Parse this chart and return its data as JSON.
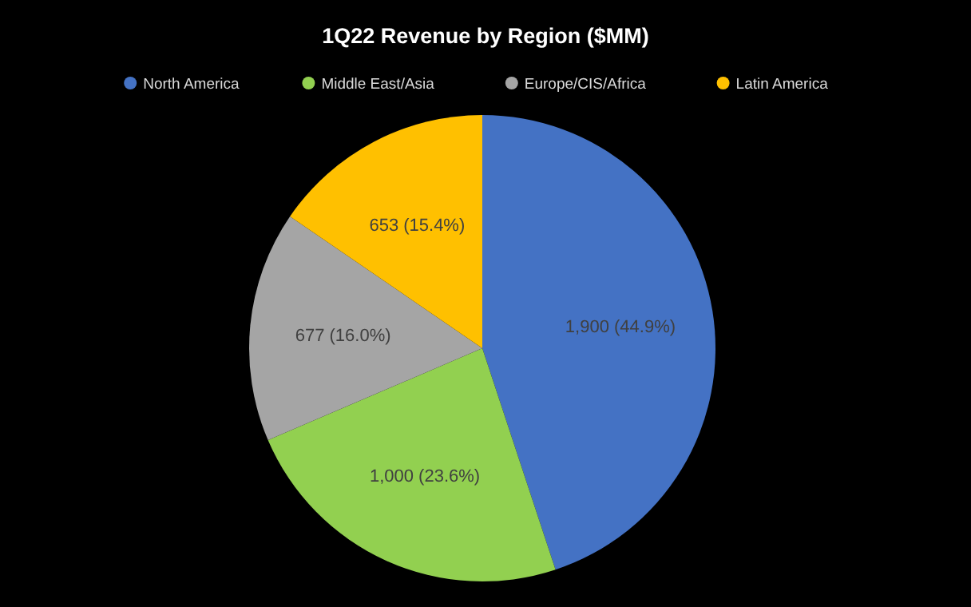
{
  "chart_data": {
    "type": "pie",
    "title": "1Q22 Revenue by Region ($MM)",
    "categories": [
      "North America",
      "Middle East/Asia",
      "Europe/CIS/Africa",
      "Latin America"
    ],
    "values": [
      1900,
      1000,
      677,
      653
    ],
    "colors": [
      "#4472c4",
      "#92d050",
      "#a5a5a5",
      "#ffc000"
    ],
    "value_labels": [
      "1,900 (44.9%)",
      "1,000 (23.6%)",
      "677 (16.0%)",
      "653 (15.4%)"
    ],
    "legend": "top"
  }
}
